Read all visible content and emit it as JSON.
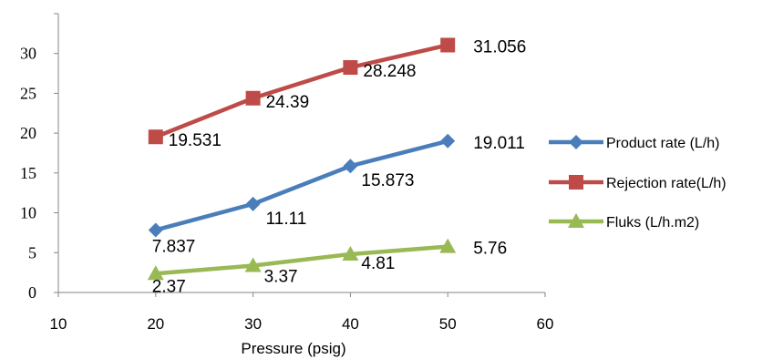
{
  "chart_data": {
    "type": "scatter-line",
    "xlabel": "Pressure  (psig)",
    "ylabel": "",
    "xlim": [
      10,
      60
    ],
    "ylim": [
      0,
      35
    ],
    "x_ticks": [
      10,
      20,
      30,
      40,
      50,
      60
    ],
    "y_ticks": [
      0,
      5,
      10,
      15,
      20,
      25,
      30
    ],
    "grid": false,
    "legend_position": "right",
    "series": [
      {
        "name": "Product rate (L/h)",
        "color": "#4a7ebb",
        "marker": "diamond",
        "x": [
          20,
          30,
          40,
          50
        ],
        "y": [
          7.837,
          11.11,
          15.873,
          19.011
        ],
        "labels": [
          "7.837",
          "11.11",
          "15.873",
          "19.011"
        ]
      },
      {
        "name": "Rejection rate(L/h)",
        "color": "#be4b48",
        "marker": "square",
        "x": [
          20,
          30,
          40,
          50
        ],
        "y": [
          19.531,
          24.39,
          28.248,
          31.056
        ],
        "labels": [
          "19.531",
          "24.39",
          "28.248",
          "31.056"
        ]
      },
      {
        "name": "Fluks (L/h.m2)",
        "color": "#98b954",
        "marker": "triangle",
        "x": [
          20,
          30,
          40,
          50
        ],
        "y": [
          2.37,
          3.37,
          4.81,
          5.76
        ],
        "labels": [
          "2.37",
          "3.37",
          "4.81",
          "5.76"
        ]
      }
    ]
  }
}
